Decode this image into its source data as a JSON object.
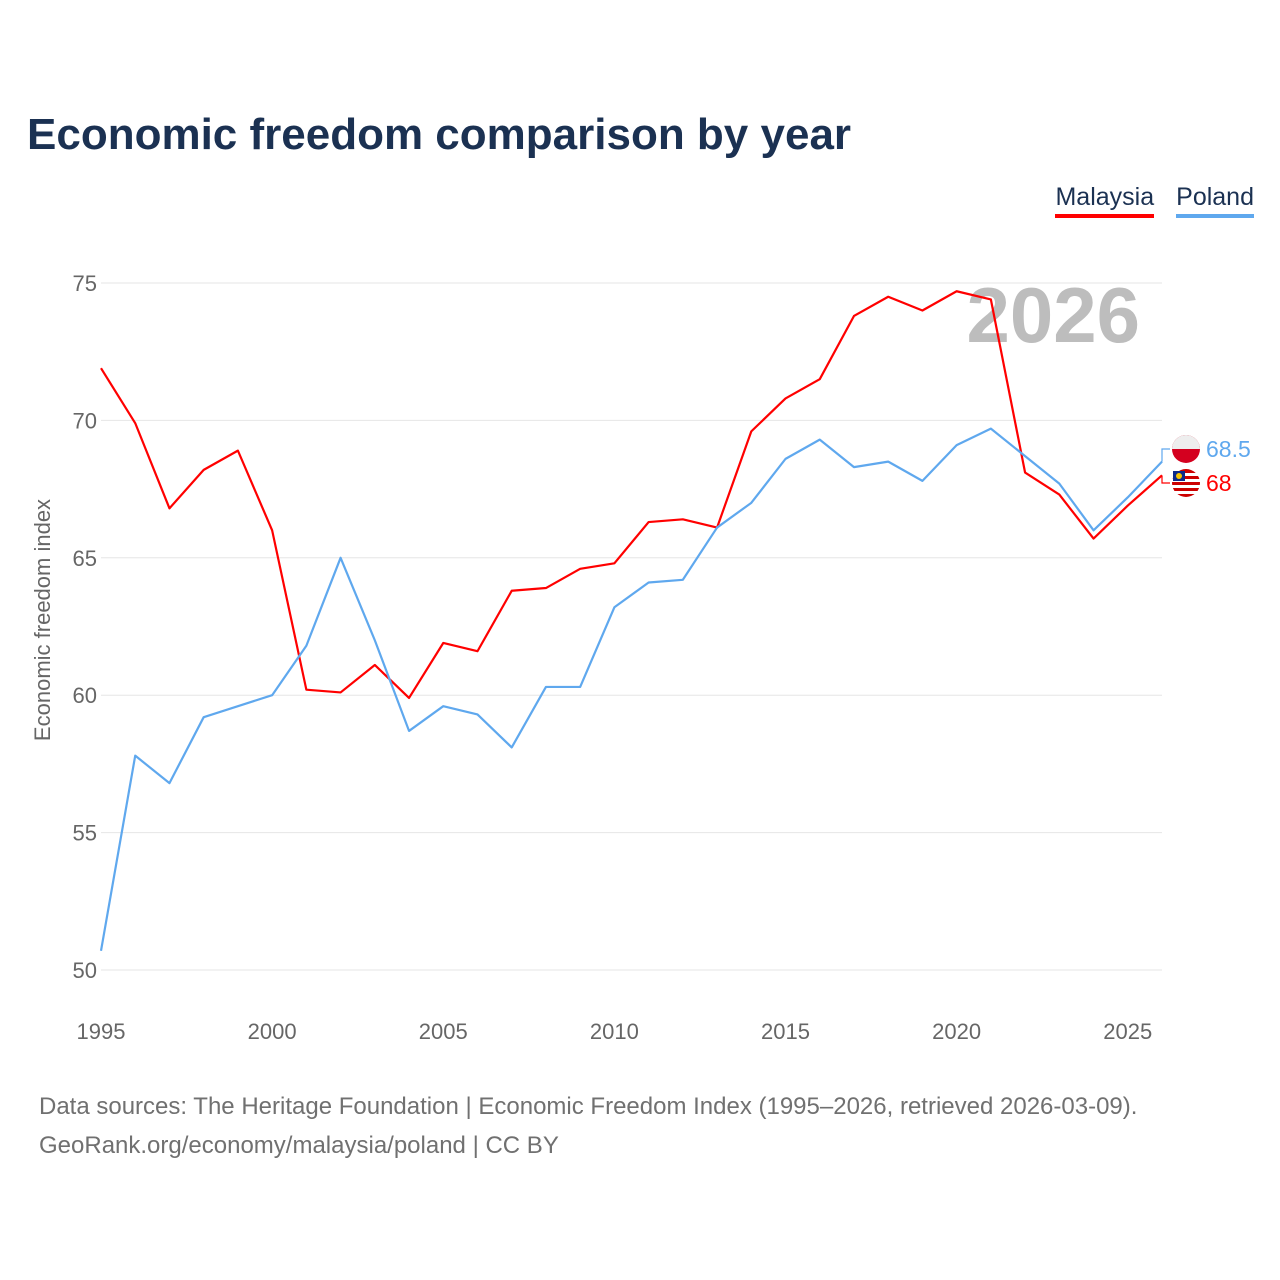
{
  "chart_data": {
    "type": "line",
    "title": "Economic freedom comparison by year",
    "xlabel": "",
    "ylabel": "Economic freedom index",
    "xlim": [
      1995,
      2026
    ],
    "ylim": [
      50,
      75
    ],
    "x_ticks": [
      "1995",
      "2000",
      "2005",
      "2010",
      "2015",
      "2020",
      "2025"
    ],
    "y_ticks": [
      "50",
      "55",
      "60",
      "65",
      "70",
      "75"
    ],
    "grid": true,
    "legend_position": "top-right",
    "year_watermark": "2026",
    "x": [
      1995,
      1996,
      1997,
      1998,
      1999,
      2000,
      2001,
      2002,
      2003,
      2004,
      2005,
      2006,
      2007,
      2008,
      2009,
      2010,
      2011,
      2012,
      2013,
      2014,
      2015,
      2016,
      2017,
      2018,
      2019,
      2020,
      2021,
      2022,
      2023,
      2024,
      2025,
      2026
    ],
    "series": [
      {
        "name": "Malaysia",
        "color": "#ff0000",
        "end_label": "68",
        "values": [
          71.9,
          69.9,
          66.8,
          68.2,
          68.9,
          66.0,
          60.2,
          60.1,
          61.1,
          59.9,
          61.9,
          61.6,
          63.8,
          63.9,
          64.6,
          64.8,
          66.3,
          66.4,
          66.1,
          69.6,
          70.8,
          71.5,
          73.8,
          74.5,
          74.0,
          74.7,
          74.4,
          68.1,
          67.3,
          65.7,
          66.9,
          68.0
        ]
      },
      {
        "name": "Poland",
        "color": "#5fa8ee",
        "end_label": "68.5",
        "values": [
          50.7,
          57.8,
          56.8,
          59.2,
          59.6,
          60.0,
          61.8,
          65.0,
          62.0,
          58.7,
          59.6,
          59.3,
          58.1,
          60.3,
          60.3,
          63.2,
          64.1,
          64.2,
          66.1,
          67.0,
          68.6,
          69.3,
          68.3,
          68.5,
          67.8,
          69.1,
          69.7,
          68.7,
          67.7,
          66.0,
          67.2,
          68.5
        ]
      }
    ]
  },
  "footer": {
    "line1": "Data sources: The Heritage Foundation | Economic Freedom Index (1995–2026, retrieved 2026-03-09).",
    "line2": "GeoRank.org/economy/malaysia/poland | CC BY"
  }
}
